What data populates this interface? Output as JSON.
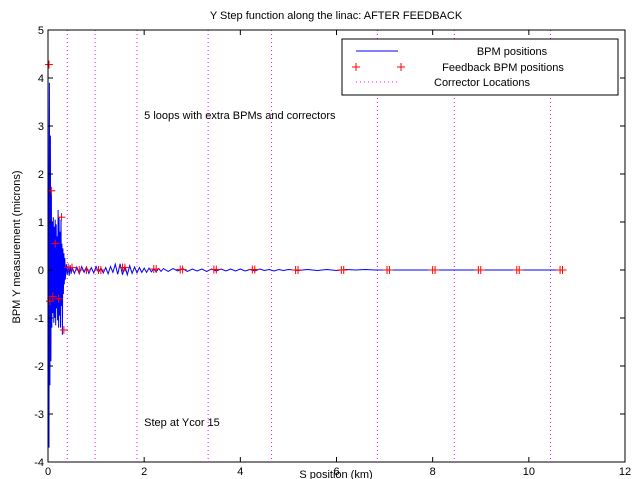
{
  "chart_data": {
    "type": "line",
    "title": "Y Step function along the linac:  AFTER FEEDBACK",
    "xlabel": "S position (km)",
    "ylabel": "BPM Y measurement (microns)",
    "xlim": [
      0,
      12
    ],
    "ylim": [
      -4,
      5
    ],
    "xticks": [
      0,
      2,
      4,
      6,
      8,
      10,
      12
    ],
    "yticks": [
      -4,
      -3,
      -2,
      -1,
      0,
      1,
      2,
      3,
      4,
      5
    ],
    "grid": false,
    "legend_position": "top-right",
    "annotations": [
      {
        "text": "5 loops with extra BPMs and correctors",
        "x": 2.0,
        "y": 3.15
      },
      {
        "text": "Step at Ycor 15",
        "x": 2.0,
        "y": -3.25
      }
    ],
    "series": [
      {
        "name": "BPM positions",
        "style": "line",
        "color": "#0000ff",
        "x": [
          0.0,
          0.02,
          0.03,
          0.04,
          0.05,
          0.06,
          0.07,
          0.08,
          0.09,
          0.1,
          0.11,
          0.12,
          0.13,
          0.14,
          0.15,
          0.16,
          0.17,
          0.18,
          0.19,
          0.2,
          0.21,
          0.22,
          0.23,
          0.24,
          0.25,
          0.26,
          0.27,
          0.28,
          0.29,
          0.3,
          0.31,
          0.32,
          0.33,
          0.34,
          0.35,
          0.36,
          0.38,
          0.4,
          0.42,
          0.44,
          0.46,
          0.48,
          0.5,
          0.55,
          0.6,
          0.65,
          0.7,
          0.75,
          0.8,
          0.85,
          0.9,
          0.95,
          1.0,
          1.05,
          1.1,
          1.15,
          1.2,
          1.25,
          1.3,
          1.35,
          1.4,
          1.45,
          1.5,
          1.55,
          1.6,
          1.65,
          1.7,
          1.75,
          1.8,
          1.85,
          1.9,
          1.95,
          2.0,
          2.05,
          2.1,
          2.15,
          2.2,
          2.25,
          2.3,
          2.35,
          2.4,
          2.5,
          2.6,
          2.7,
          2.8,
          2.9,
          3.0,
          3.1,
          3.2,
          3.3,
          3.4,
          3.5,
          3.6,
          3.7,
          3.8,
          3.9,
          4.0,
          4.1,
          4.2,
          4.3,
          4.4,
          4.5,
          4.6,
          4.7,
          4.8,
          4.9,
          5.0,
          5.2,
          5.4,
          5.6,
          5.8,
          6.0,
          6.2,
          6.4,
          6.6,
          6.8,
          7.0,
          7.5,
          8.0,
          8.5,
          9.0,
          9.5,
          10.0,
          10.7
        ],
        "y": [
          4.25,
          -3.7,
          3.9,
          -2.4,
          2.8,
          -1.9,
          1.6,
          -1.2,
          1.0,
          -0.9,
          1.1,
          -1.1,
          0.9,
          -1.0,
          1.05,
          -1.15,
          0.95,
          -0.8,
          0.7,
          -1.05,
          1.25,
          -1.2,
          1.1,
          -0.95,
          0.8,
          -1.2,
          1.05,
          -0.75,
          0.55,
          -1.35,
          0.45,
          -0.5,
          0.35,
          -0.3,
          0.25,
          -0.2,
          0.12,
          -0.1,
          0.08,
          -0.12,
          0.1,
          -0.08,
          0.06,
          -0.07,
          0.06,
          -0.08,
          0.07,
          -0.05,
          0.06,
          -0.07,
          0.05,
          -0.06,
          0.07,
          -0.05,
          0.04,
          -0.06,
          0.05,
          -0.08,
          0.07,
          -0.05,
          0.12,
          -0.09,
          0.13,
          -0.1,
          0.08,
          -0.1,
          0.09,
          -0.07,
          0.06,
          -0.06,
          0.05,
          -0.05,
          0.04,
          -0.05,
          0.04,
          -0.04,
          0.03,
          -0.04,
          0.03,
          -0.03,
          0.03,
          -0.03,
          0.03,
          -0.02,
          0.03,
          -0.03,
          0.02,
          -0.02,
          0.02,
          -0.03,
          0.02,
          -0.02,
          0.02,
          -0.02,
          0.02,
          -0.02,
          0.02,
          -0.02,
          0.01,
          -0.02,
          0.02,
          -0.01,
          0.01,
          -0.02,
          0.01,
          -0.01,
          0.01,
          -0.01,
          0.01,
          -0.01,
          0.01,
          -0.01,
          0.01,
          0.0,
          0.01,
          0.0,
          0.0,
          0.0,
          0.0,
          0.0,
          0.0,
          0.0,
          0.0,
          0.0
        ]
      },
      {
        "name": "Feedback BPM positions",
        "style": "plus",
        "color": "#ff0000",
        "x": [
          0.02,
          0.04,
          0.07,
          0.1,
          0.15,
          0.22,
          0.28,
          0.33,
          0.42,
          0.5,
          0.65,
          0.8,
          1.05,
          1.1,
          1.55,
          1.6,
          2.2,
          2.25,
          2.75,
          2.8,
          3.45,
          3.5,
          4.25,
          4.3,
          5.15,
          5.2,
          6.1,
          6.15,
          7.05,
          7.1,
          8.0,
          8.05,
          8.95,
          9.0,
          9.75,
          9.8,
          10.65,
          10.7
        ],
        "y": [
          4.28,
          -0.65,
          1.65,
          -0.55,
          0.55,
          -0.6,
          1.1,
          -1.25,
          0.05,
          0.05,
          0.0,
          0.0,
          0.0,
          0.0,
          0.05,
          0.05,
          0.02,
          0.02,
          0.01,
          0.01,
          0.01,
          0.01,
          0.01,
          0.01,
          0.0,
          0.0,
          0.0,
          0.0,
          0.0,
          0.0,
          0.0,
          0.0,
          0.0,
          0.0,
          0.0,
          0.0,
          0.0,
          0.0
        ]
      },
      {
        "name": "Corrector Locations",
        "style": "vline",
        "color": "#ff00ff",
        "x": [
          0.4,
          0.98,
          1.85,
          3.33,
          4.65,
          6.85,
          8.45,
          10.45
        ]
      }
    ]
  }
}
